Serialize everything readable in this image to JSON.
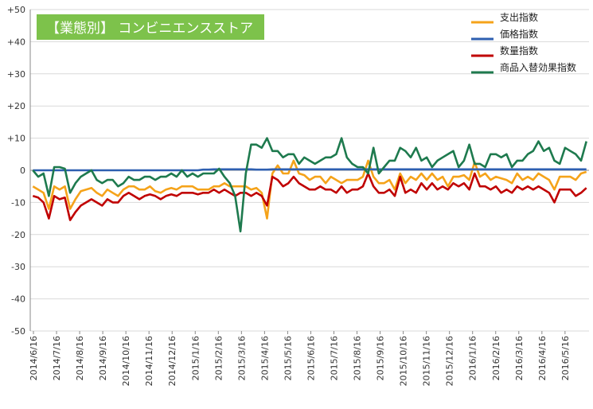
{
  "chart_data": {
    "type": "line",
    "title": "【業態別】 コンビニエンスストア",
    "title_bg": "#7dc24b",
    "title_color": "#ffffff",
    "xlabel": "",
    "ylabel": "",
    "ylim": [
      -50,
      50
    ],
    "ytick_labels": [
      "+50",
      "+40",
      "+30",
      "+20",
      "+10",
      "0",
      "-10",
      "-20",
      "-30",
      "-40",
      "-50"
    ],
    "ytick_values": [
      50,
      40,
      30,
      20,
      10,
      0,
      -10,
      -20,
      -30,
      -40,
      -50
    ],
    "grid": true,
    "legend_position": "top-right",
    "x_tick_labels": [
      "2014/6/16",
      "2014/7/16",
      "2014/8/16",
      "2014/9/16",
      "2014/10/16",
      "2014/11/16",
      "2014/12/16",
      "2015/1/16",
      "2015/2/16",
      "2015/3/16",
      "2015/4/16",
      "2015/5/16",
      "2015/6/16",
      "2015/7/16",
      "2015/8/16",
      "2015/9/16",
      "2015/10/16",
      "2015/11/16",
      "2015/12/16",
      "2016/1/16",
      "2016/2/16",
      "2016/3/16",
      "2016/4/16",
      "2016/5/16"
    ],
    "x_count": 105,
    "series": [
      {
        "name": "支出指数",
        "color": "#f5a31a",
        "values": [
          -5,
          -6,
          -7,
          -12,
          -5,
          -6,
          -5,
          -12,
          -9,
          -6.5,
          -6,
          -5.5,
          -7,
          -8,
          -6,
          -7,
          -8,
          -6,
          -5,
          -5,
          -6,
          -6,
          -5,
          -6.5,
          -7,
          -6,
          -5.5,
          -6,
          -5,
          -5,
          -5,
          -6,
          -6,
          -6,
          -5,
          -5,
          -4,
          -5,
          -5,
          -5,
          -5,
          -6,
          -5.5,
          -7,
          -15,
          -1,
          1.5,
          -1,
          -1,
          3,
          -1,
          -1.5,
          -3,
          -2,
          -2,
          -4,
          -2,
          -3,
          -4,
          -3,
          -3,
          -3,
          -2,
          3,
          -2,
          -4,
          -4,
          -3,
          -6,
          -1,
          -4,
          -2,
          -3,
          -1,
          -3,
          -1,
          -3,
          -2,
          -5,
          -2,
          -2,
          -1.5,
          -3,
          2.5,
          -2,
          -1,
          -3,
          -2,
          -2.5,
          -3,
          -4,
          -1,
          -3,
          -2,
          -3,
          -1,
          -2,
          -3,
          -6,
          -2,
          -2,
          -2,
          -3,
          -1,
          -0.5
        ]
      },
      {
        "name": "価格指数",
        "color": "#2e5fb0",
        "values": [
          0,
          0,
          0,
          0,
          0,
          0,
          0,
          0,
          0,
          0,
          0,
          0,
          0,
          0,
          0,
          0,
          0,
          0,
          0,
          0,
          0,
          0,
          0,
          0,
          0,
          0,
          0,
          0,
          0,
          0,
          0,
          0,
          0.2,
          0.2,
          0.3,
          0.3,
          0.3,
          0.3,
          0.3,
          0.3,
          0.3,
          0.3,
          0.2,
          0.2,
          0.2,
          0.3,
          0.3,
          0.3,
          0.3,
          0.3,
          0.3,
          0.3,
          0.3,
          0.3,
          0.3,
          0.3,
          0.3,
          0.3,
          0.3,
          0.3,
          0.3,
          0.3,
          0.3,
          0.3,
          0.3,
          0.3,
          0.3,
          0.3,
          0.3,
          0.3,
          0.3,
          0.3,
          0.3,
          0.3,
          0.3,
          0.3,
          0.3,
          0.3,
          0.3,
          0.3,
          0.3,
          0.3,
          0.3,
          0.3,
          0.3,
          0.3,
          0.3,
          0.3,
          0.3,
          0.3,
          0.3,
          0.3,
          0.3,
          0.3,
          0.3,
          0.3,
          0.3,
          0.3,
          0.3,
          0.3,
          0.3,
          0.3,
          0.3,
          0.3,
          0.3
        ]
      },
      {
        "name": "数量指数",
        "color": "#c00000",
        "values": [
          -8,
          -8.5,
          -10,
          -15,
          -8,
          -9,
          -8.5,
          -15.5,
          -13,
          -11,
          -10,
          -9,
          -10,
          -11,
          -9,
          -10,
          -10,
          -8,
          -7,
          -8,
          -9,
          -8,
          -7.5,
          -8,
          -9,
          -8,
          -7.5,
          -8,
          -7,
          -7,
          -7,
          -7.5,
          -7,
          -7,
          -6,
          -7,
          -6,
          -7,
          -8,
          -7,
          -7,
          -8,
          -7,
          -8,
          -11,
          -2,
          -3,
          -5,
          -4,
          -2,
          -4,
          -5,
          -6,
          -6,
          -5,
          -6,
          -6,
          -7,
          -5,
          -7,
          -6,
          -6,
          -5,
          -1,
          -5,
          -7,
          -7,
          -6,
          -8,
          -2,
          -7,
          -6,
          -7,
          -4,
          -6,
          -4,
          -6,
          -5,
          -6,
          -4,
          -5,
          -4,
          -6,
          -1,
          -5,
          -5,
          -6,
          -5,
          -7,
          -6,
          -7,
          -5,
          -6,
          -5,
          -6,
          -5,
          -6,
          -7,
          -10,
          -6,
          -6,
          -6,
          -8,
          -7,
          -5.5
        ]
      },
      {
        "name": "商品入替効果指数",
        "color": "#1e7a4e",
        "values": [
          0,
          -2,
          -1,
          -8,
          1,
          1,
          0.5,
          -7,
          -4,
          -2,
          -1,
          0,
          -3,
          -4,
          -3,
          -3,
          -5,
          -4,
          -2,
          -3,
          -3,
          -2,
          -2,
          -3,
          -2,
          -2,
          -1,
          -2,
          0,
          -2,
          -1,
          -2,
          -1,
          -1,
          -1,
          0.5,
          -2,
          -4,
          -8,
          -19,
          -1,
          8,
          8,
          7,
          10,
          6,
          6,
          4,
          5,
          5,
          2,
          4,
          3,
          2,
          3,
          4,
          4,
          5,
          10,
          4,
          2,
          1,
          1,
          -1,
          7,
          -1,
          1,
          3,
          3,
          7,
          6,
          4,
          7,
          3,
          4,
          1,
          3,
          4,
          5,
          6,
          1,
          3,
          8,
          2,
          2,
          1,
          5,
          5,
          4,
          5,
          1,
          3,
          3,
          5,
          6,
          9,
          6,
          7,
          3,
          2,
          7,
          6,
          5,
          3,
          9
        ]
      }
    ]
  }
}
